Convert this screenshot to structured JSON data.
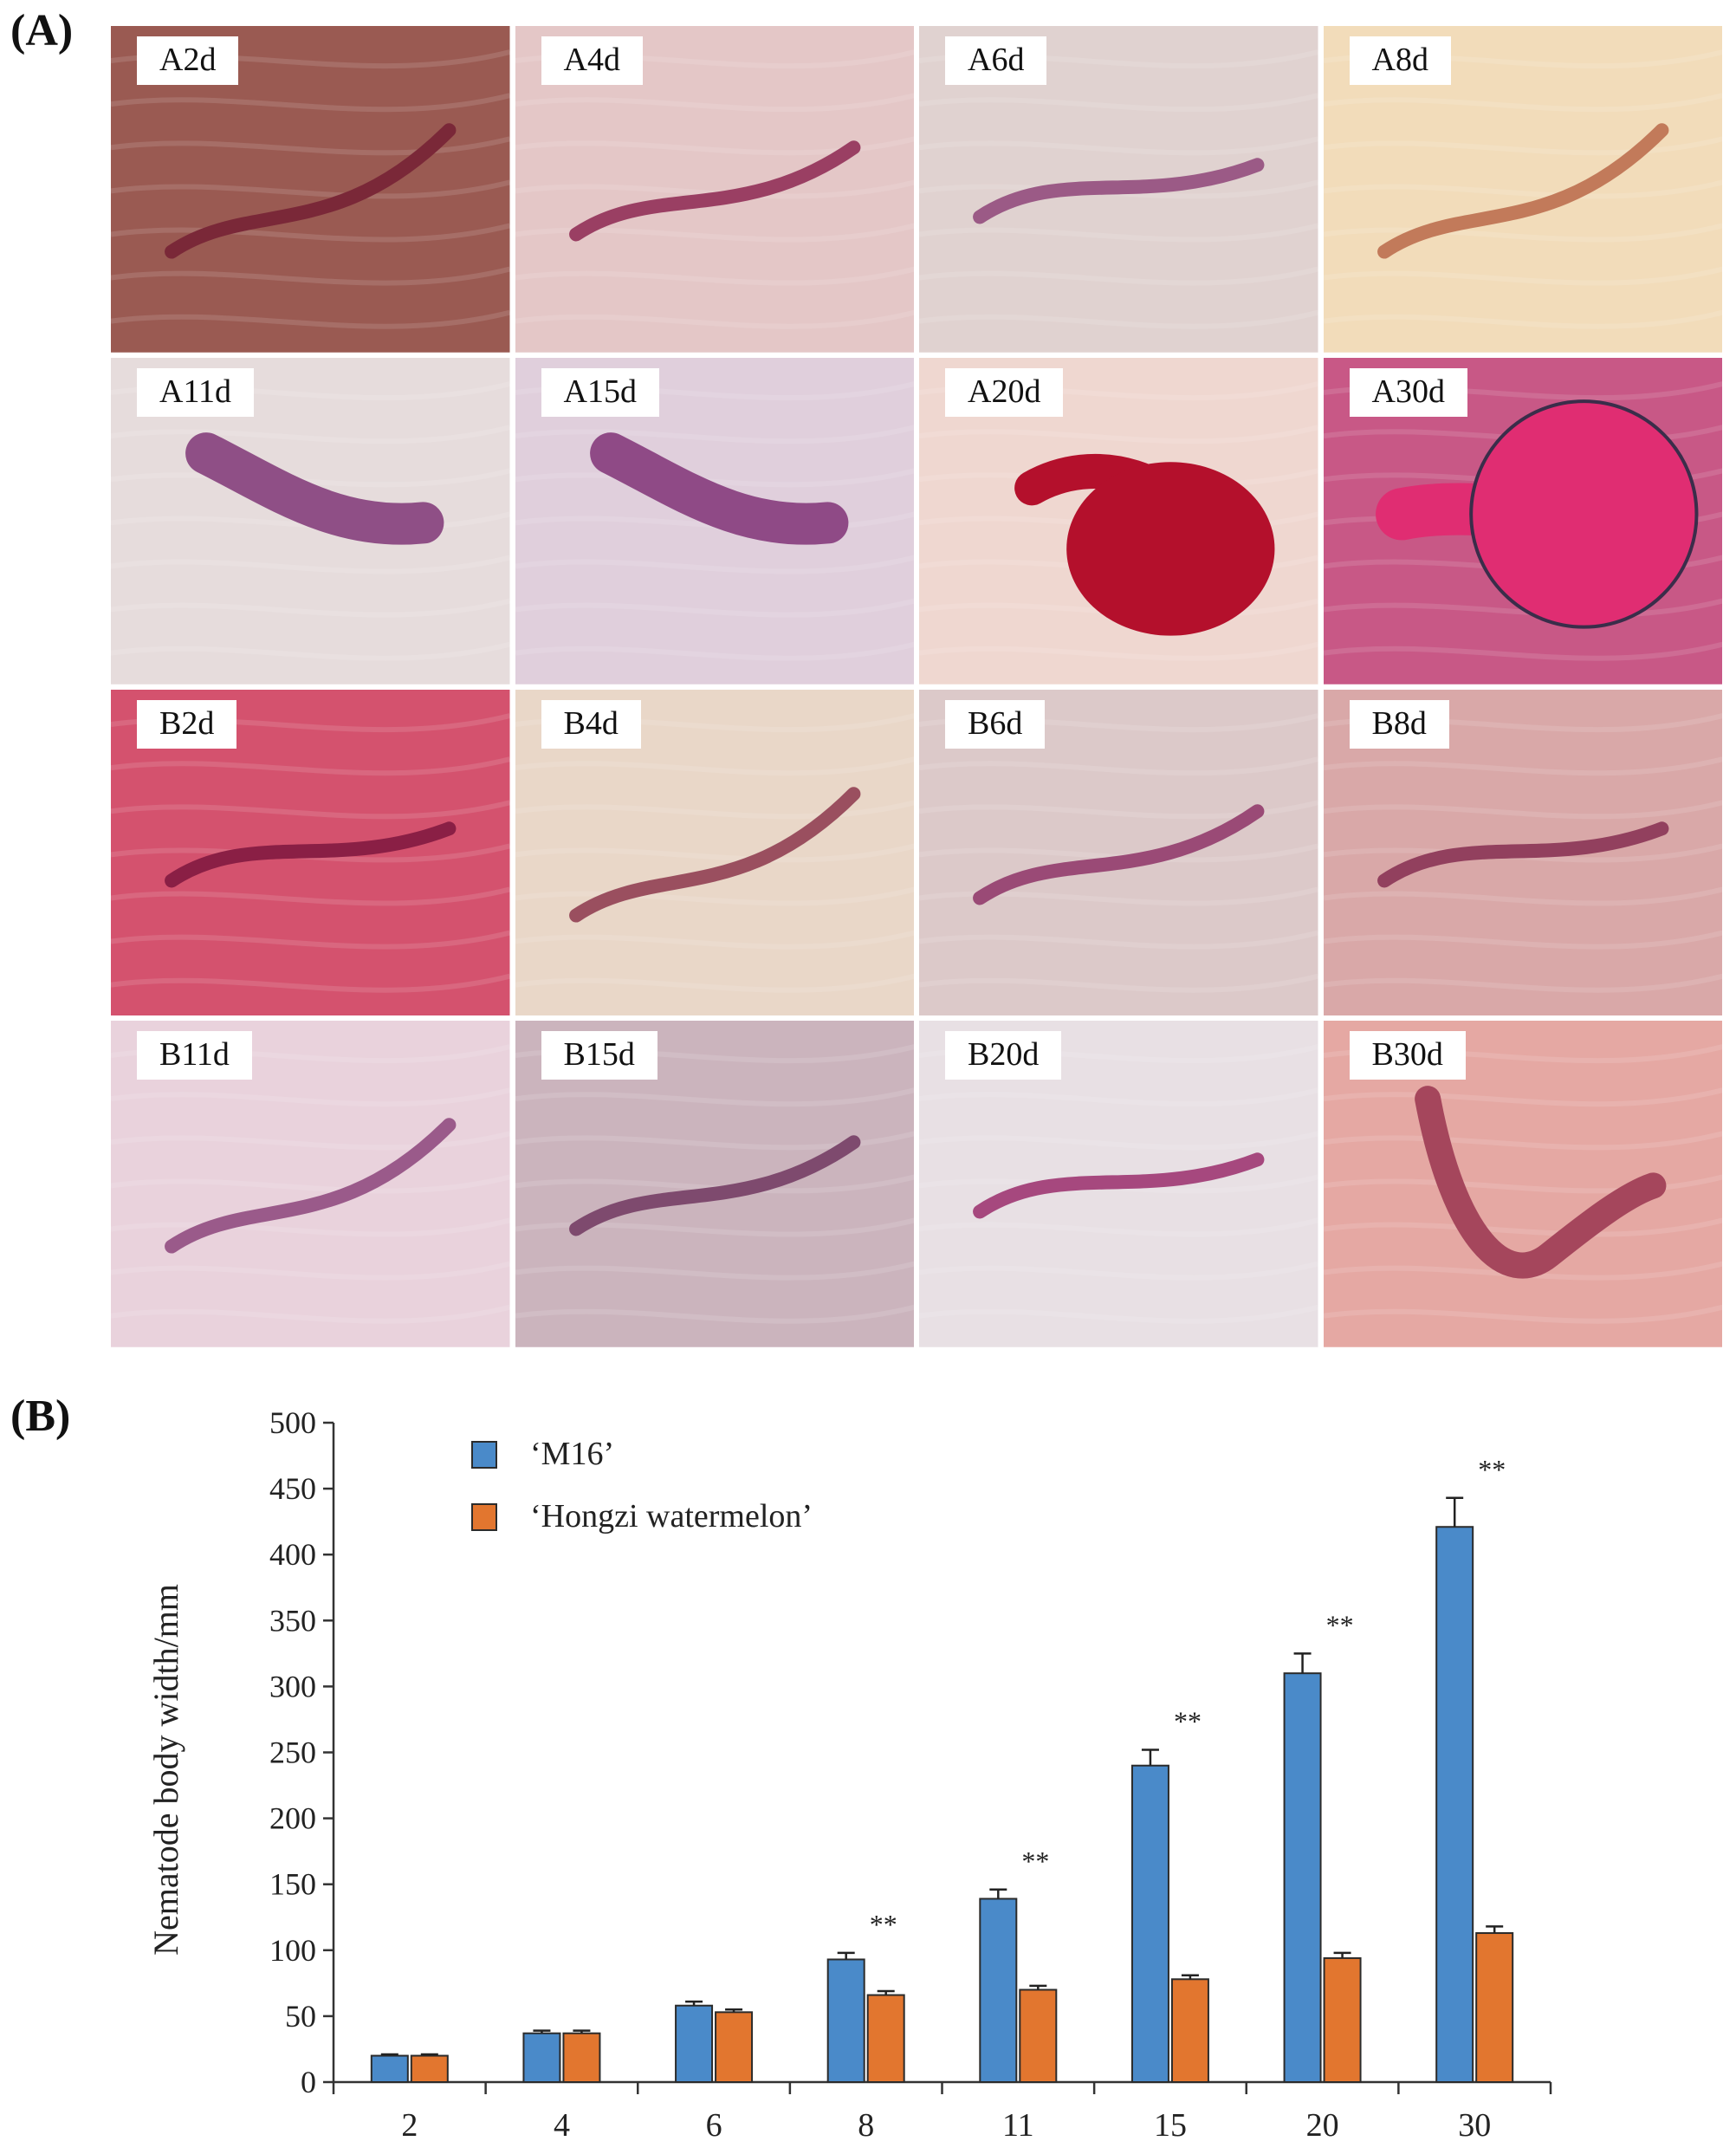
{
  "panel_a_label": "(A)",
  "panel_b_label": "(B)",
  "micrographs": [
    {
      "label": "A2d",
      "bg": "#9a5a52",
      "worm": "#7a2838",
      "shape": "thin"
    },
    {
      "label": "A4d",
      "bg": "#e4c7c7",
      "worm": "#9a3f63",
      "shape": "thin"
    },
    {
      "label": "A6d",
      "bg": "#e0d2d0",
      "worm": "#9b5a86",
      "shape": "thin"
    },
    {
      "label": "A8d",
      "bg": "#f2dcba",
      "worm": "#c27a5a",
      "shape": "thin"
    },
    {
      "label": "A11d",
      "bg": "#e6dcdc",
      "worm": "#8f4f86",
      "shape": "sausage"
    },
    {
      "label": "A15d",
      "bg": "#e0cfdc",
      "worm": "#8f4a86",
      "shape": "sausage"
    },
    {
      "label": "A20d",
      "bg": "#efd7d0",
      "worm": "#b4102c",
      "shape": "swollen"
    },
    {
      "label": "A30d",
      "bg": "#c85886",
      "worm": "#e02d72",
      "shape": "round"
    },
    {
      "label": "B2d",
      "bg": "#d4526e",
      "worm": "#8a1f45",
      "shape": "thin"
    },
    {
      "label": "B4d",
      "bg": "#e9d7c8",
      "worm": "#9a4f5f",
      "shape": "thin"
    },
    {
      "label": "B6d",
      "bg": "#dcc9c9",
      "worm": "#9a4a76",
      "shape": "thin"
    },
    {
      "label": "B8d",
      "bg": "#d9a8a8",
      "worm": "#92405e",
      "shape": "thin"
    },
    {
      "label": "B11d",
      "bg": "#e9d2dc",
      "worm": "#9a5a8a",
      "shape": "thin"
    },
    {
      "label": "B15d",
      "bg": "#cbb4bd",
      "worm": "#7e4a6e",
      "shape": "thin"
    },
    {
      "label": "B20d",
      "bg": "#e8e0e4",
      "worm": "#a6487e",
      "shape": "thin"
    },
    {
      "label": "B30d",
      "bg": "#e5a8a3",
      "worm": "#a5465c",
      "shape": "thick"
    }
  ],
  "chart_data": {
    "type": "bar",
    "ylabel": "Nematode body width/mm",
    "ylim": [
      0,
      500
    ],
    "yticks": [
      0,
      50,
      100,
      150,
      200,
      250,
      300,
      350,
      400,
      450,
      500
    ],
    "categories": [
      "2",
      "4",
      "6",
      "8",
      "11",
      "15",
      "20",
      "30"
    ],
    "series": [
      {
        "name": "‘M16’",
        "color": "#4a8ac9",
        "values": [
          20,
          37,
          58,
          93,
          139,
          240,
          310,
          421
        ],
        "errors": [
          1,
          2,
          3,
          5,
          7,
          12,
          15,
          22
        ]
      },
      {
        "name": "‘Hongzi watermelon’",
        "color": "#e2762f",
        "values": [
          20,
          37,
          53,
          66,
          70,
          78,
          94,
          113
        ],
        "errors": [
          1,
          2,
          2,
          3,
          3,
          3,
          4,
          5
        ]
      }
    ],
    "significance": [
      "",
      "",
      "",
      "**",
      "**",
      "**",
      "**",
      "**"
    ],
    "legend_position": "top-left",
    "grid": false
  }
}
